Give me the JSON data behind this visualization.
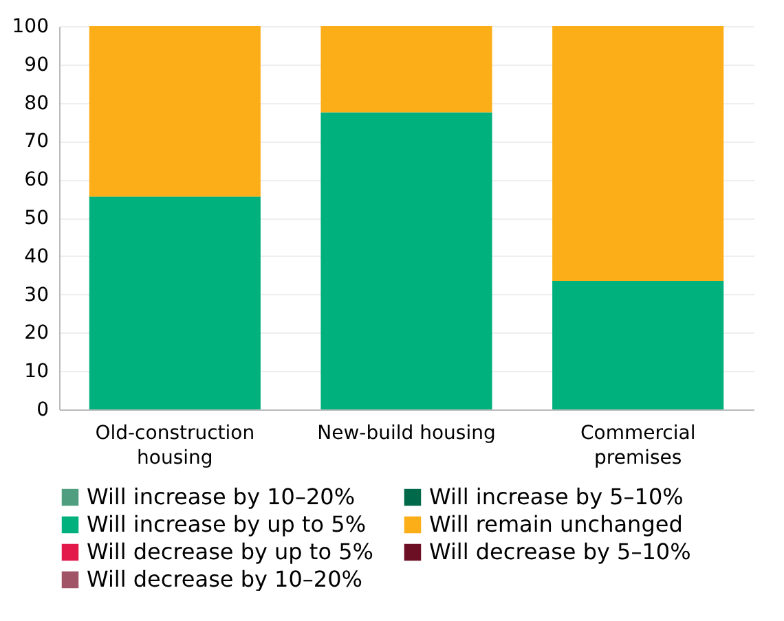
{
  "chart_data": {
    "type": "bar",
    "stacked": true,
    "categories": [
      "Old-construction housing",
      "New-build housing",
      "Commercial premises"
    ],
    "series": [
      {
        "name": "Will increase by 10–20%",
        "color": "#4f9e80",
        "values": [
          0,
          0,
          0
        ]
      },
      {
        "name": "Will increase by 5–10%",
        "color": "#00694a",
        "values": [
          0,
          0,
          0
        ]
      },
      {
        "name": "Will increase by up to 5%",
        "color": "#00b07d",
        "values": [
          55.5,
          77.5,
          33.5
        ]
      },
      {
        "name": "Will remain unchanged",
        "color": "#fcae19",
        "values": [
          44.5,
          22.5,
          66.5
        ]
      },
      {
        "name": "Will decrease by up to 5%",
        "color": "#e3194b",
        "values": [
          0,
          0,
          0
        ]
      },
      {
        "name": "Will decrease by 5–10%",
        "color": "#6d0f24",
        "values": [
          0,
          0,
          0
        ]
      },
      {
        "name": "Will decrease by 10–20%",
        "color": "#a05465",
        "values": [
          0,
          0,
          0
        ]
      }
    ],
    "ylim": [
      0,
      100
    ],
    "yticks": [
      0,
      10,
      20,
      30,
      40,
      50,
      60,
      70,
      80,
      90,
      100
    ],
    "grid": "y",
    "legend": "bottom"
  }
}
